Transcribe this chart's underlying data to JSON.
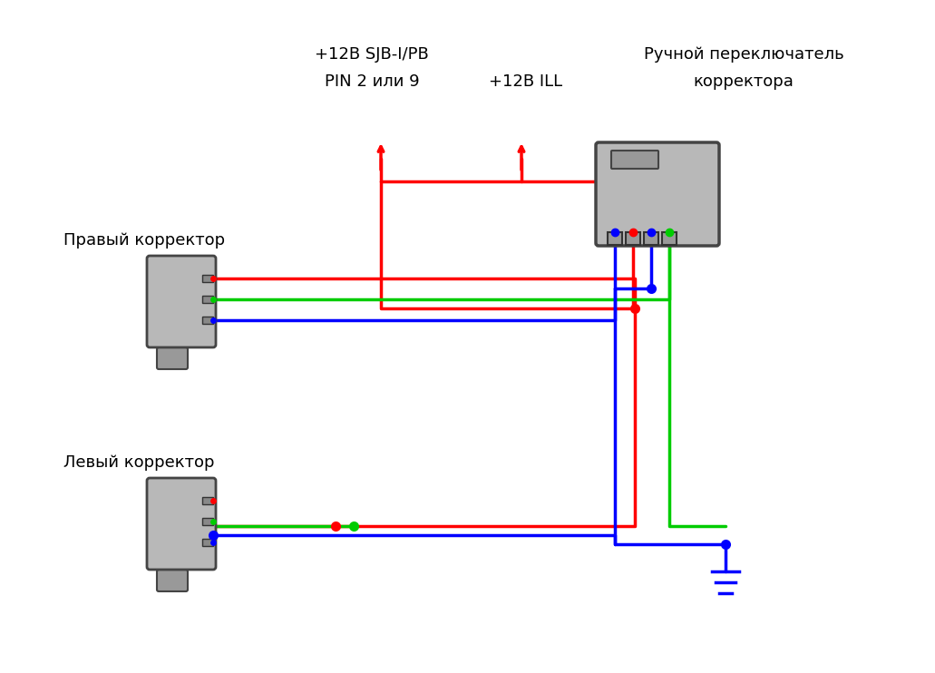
{
  "title": "",
  "bg_color": "#ffffff",
  "text_color": "#000000",
  "label_right_connector": "Правый корректор",
  "label_left_connector": "Левый корректор",
  "label_top1_line1": "+12В SJB-I/PB",
  "label_top1_line2": "PIN 2 или 9",
  "label_top2": "+12В ILL",
  "label_switch_line1": "Ручной переключатель",
  "label_switch_line2": "корректора",
  "wire_lw": 2.5,
  "dot_size": 8
}
